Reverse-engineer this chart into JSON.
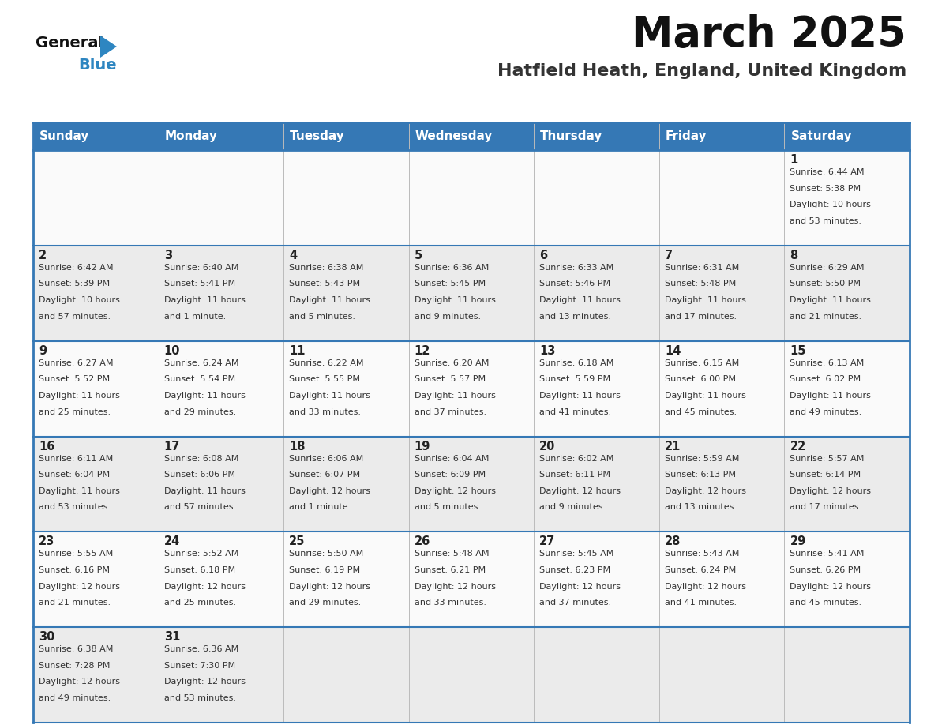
{
  "title": "March 2025",
  "subtitle": "Hatfield Heath, England, United Kingdom",
  "days_of_week": [
    "Sunday",
    "Monday",
    "Tuesday",
    "Wednesday",
    "Thursday",
    "Friday",
    "Saturday"
  ],
  "header_bg": "#3578B5",
  "header_text": "#FFFFFF",
  "row_bg_odd": "#EBEBEB",
  "row_bg_even": "#FAFAFA",
  "cell_text_color": "#333333",
  "day_number_color": "#222222",
  "border_color": "#3578B5",
  "logo_general_color": "#111111",
  "logo_blue_color": "#2E86C1",
  "logo_triangle_color": "#2E86C1",
  "title_color": "#111111",
  "subtitle_color": "#333333",
  "calendar_data": [
    {
      "day": 1,
      "col": 6,
      "row": 0,
      "sunrise": "6:44 AM",
      "sunset": "5:38 PM",
      "daylight": "10 hours and 53 minutes."
    },
    {
      "day": 2,
      "col": 0,
      "row": 1,
      "sunrise": "6:42 AM",
      "sunset": "5:39 PM",
      "daylight": "10 hours and 57 minutes."
    },
    {
      "day": 3,
      "col": 1,
      "row": 1,
      "sunrise": "6:40 AM",
      "sunset": "5:41 PM",
      "daylight": "11 hours and 1 minute."
    },
    {
      "day": 4,
      "col": 2,
      "row": 1,
      "sunrise": "6:38 AM",
      "sunset": "5:43 PM",
      "daylight": "11 hours and 5 minutes."
    },
    {
      "day": 5,
      "col": 3,
      "row": 1,
      "sunrise": "6:36 AM",
      "sunset": "5:45 PM",
      "daylight": "11 hours and 9 minutes."
    },
    {
      "day": 6,
      "col": 4,
      "row": 1,
      "sunrise": "6:33 AM",
      "sunset": "5:46 PM",
      "daylight": "11 hours and 13 minutes."
    },
    {
      "day": 7,
      "col": 5,
      "row": 1,
      "sunrise": "6:31 AM",
      "sunset": "5:48 PM",
      "daylight": "11 hours and 17 minutes."
    },
    {
      "day": 8,
      "col": 6,
      "row": 1,
      "sunrise": "6:29 AM",
      "sunset": "5:50 PM",
      "daylight": "11 hours and 21 minutes."
    },
    {
      "day": 9,
      "col": 0,
      "row": 2,
      "sunrise": "6:27 AM",
      "sunset": "5:52 PM",
      "daylight": "11 hours and 25 minutes."
    },
    {
      "day": 10,
      "col": 1,
      "row": 2,
      "sunrise": "6:24 AM",
      "sunset": "5:54 PM",
      "daylight": "11 hours and 29 minutes."
    },
    {
      "day": 11,
      "col": 2,
      "row": 2,
      "sunrise": "6:22 AM",
      "sunset": "5:55 PM",
      "daylight": "11 hours and 33 minutes."
    },
    {
      "day": 12,
      "col": 3,
      "row": 2,
      "sunrise": "6:20 AM",
      "sunset": "5:57 PM",
      "daylight": "11 hours and 37 minutes."
    },
    {
      "day": 13,
      "col": 4,
      "row": 2,
      "sunrise": "6:18 AM",
      "sunset": "5:59 PM",
      "daylight": "11 hours and 41 minutes."
    },
    {
      "day": 14,
      "col": 5,
      "row": 2,
      "sunrise": "6:15 AM",
      "sunset": "6:00 PM",
      "daylight": "11 hours and 45 minutes."
    },
    {
      "day": 15,
      "col": 6,
      "row": 2,
      "sunrise": "6:13 AM",
      "sunset": "6:02 PM",
      "daylight": "11 hours and 49 minutes."
    },
    {
      "day": 16,
      "col": 0,
      "row": 3,
      "sunrise": "6:11 AM",
      "sunset": "6:04 PM",
      "daylight": "11 hours and 53 minutes."
    },
    {
      "day": 17,
      "col": 1,
      "row": 3,
      "sunrise": "6:08 AM",
      "sunset": "6:06 PM",
      "daylight": "11 hours and 57 minutes."
    },
    {
      "day": 18,
      "col": 2,
      "row": 3,
      "sunrise": "6:06 AM",
      "sunset": "6:07 PM",
      "daylight": "12 hours and 1 minute."
    },
    {
      "day": 19,
      "col": 3,
      "row": 3,
      "sunrise": "6:04 AM",
      "sunset": "6:09 PM",
      "daylight": "12 hours and 5 minutes."
    },
    {
      "day": 20,
      "col": 4,
      "row": 3,
      "sunrise": "6:02 AM",
      "sunset": "6:11 PM",
      "daylight": "12 hours and 9 minutes."
    },
    {
      "day": 21,
      "col": 5,
      "row": 3,
      "sunrise": "5:59 AM",
      "sunset": "6:13 PM",
      "daylight": "12 hours and 13 minutes."
    },
    {
      "day": 22,
      "col": 6,
      "row": 3,
      "sunrise": "5:57 AM",
      "sunset": "6:14 PM",
      "daylight": "12 hours and 17 minutes."
    },
    {
      "day": 23,
      "col": 0,
      "row": 4,
      "sunrise": "5:55 AM",
      "sunset": "6:16 PM",
      "daylight": "12 hours and 21 minutes."
    },
    {
      "day": 24,
      "col": 1,
      "row": 4,
      "sunrise": "5:52 AM",
      "sunset": "6:18 PM",
      "daylight": "12 hours and 25 minutes."
    },
    {
      "day": 25,
      "col": 2,
      "row": 4,
      "sunrise": "5:50 AM",
      "sunset": "6:19 PM",
      "daylight": "12 hours and 29 minutes."
    },
    {
      "day": 26,
      "col": 3,
      "row": 4,
      "sunrise": "5:48 AM",
      "sunset": "6:21 PM",
      "daylight": "12 hours and 33 minutes."
    },
    {
      "day": 27,
      "col": 4,
      "row": 4,
      "sunrise": "5:45 AM",
      "sunset": "6:23 PM",
      "daylight": "12 hours and 37 minutes."
    },
    {
      "day": 28,
      "col": 5,
      "row": 4,
      "sunrise": "5:43 AM",
      "sunset": "6:24 PM",
      "daylight": "12 hours and 41 minutes."
    },
    {
      "day": 29,
      "col": 6,
      "row": 4,
      "sunrise": "5:41 AM",
      "sunset": "6:26 PM",
      "daylight": "12 hours and 45 minutes."
    },
    {
      "day": 30,
      "col": 0,
      "row": 5,
      "sunrise": "6:38 AM",
      "sunset": "7:28 PM",
      "daylight": "12 hours and 49 minutes."
    },
    {
      "day": 31,
      "col": 1,
      "row": 5,
      "sunrise": "6:36 AM",
      "sunset": "7:30 PM",
      "daylight": "12 hours and 53 minutes."
    }
  ],
  "num_rows": 6,
  "num_cols": 7
}
